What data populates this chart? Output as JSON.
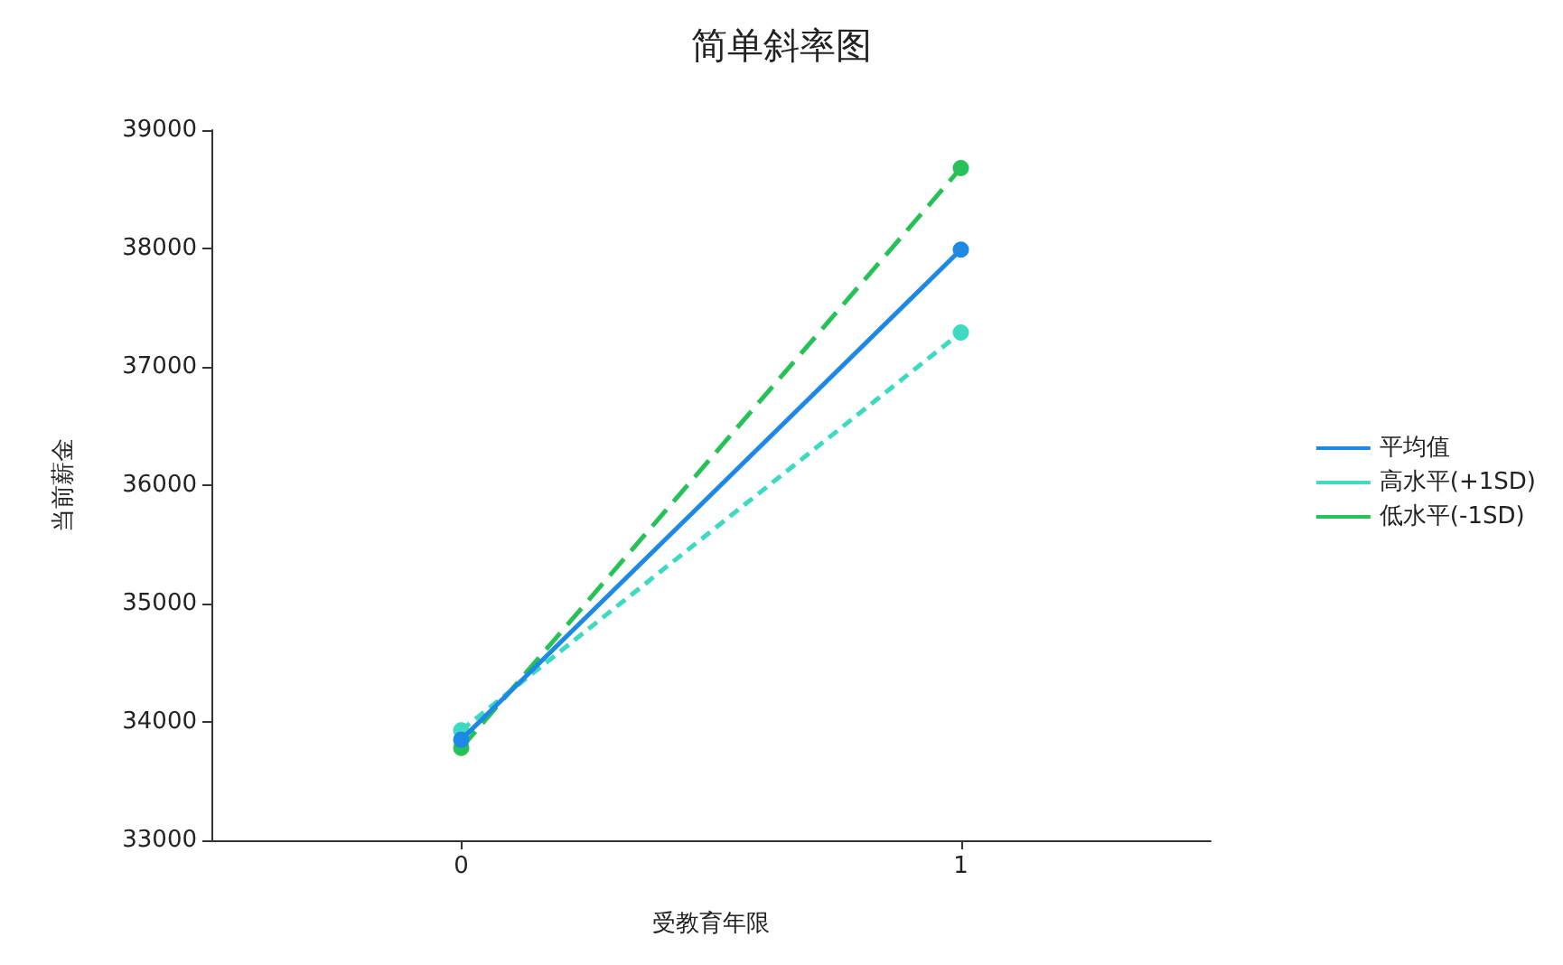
{
  "chart_data": {
    "type": "line",
    "title": "简单斜率图",
    "xlabel": "受教育年限",
    "ylabel": "当前薪金",
    "categories": [
      "0",
      "1"
    ],
    "series": [
      {
        "name": "平均值",
        "color": "#1e88e5",
        "values": [
          33850,
          37990
        ],
        "line_style": "solid"
      },
      {
        "name": "高水平(+1SD)",
        "color": "#3dd9c1",
        "values": [
          33930,
          37290
        ],
        "line_style": "dashed"
      },
      {
        "name": "低水平(-1SD)",
        "color": "#27c257",
        "values": [
          33780,
          38680
        ],
        "line_style": "dashed"
      }
    ],
    "ylim": [
      33000,
      39000
    ],
    "yticks": [
      33000,
      34000,
      35000,
      36000,
      37000,
      38000,
      39000
    ],
    "grid": false,
    "legend": "right",
    "marker": "circle"
  }
}
